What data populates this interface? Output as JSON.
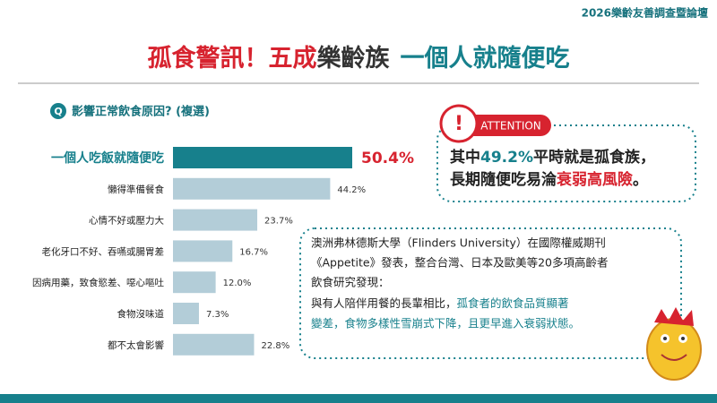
{
  "header": {
    "event": "2026樂齡友善調查暨論壇",
    "title_parts": [
      "孤食警訊！五成",
      "樂齡族",
      "一個人就隨便吃"
    ]
  },
  "q_icon": "Q",
  "chart_data": {
    "type": "bar",
    "orientation": "horizontal",
    "title": "影響正常飲食原因? (複選)",
    "categories": [
      "一個人吃飯就隨便吃",
      "懶得準備餐食",
      "心情不好或壓力大",
      "老化牙口不好、吞嚥或腸胃差",
      "因病用藥，致食慾差、噁心嘔吐",
      "食物沒味道",
      "都不太會影響"
    ],
    "values": [
      50.4,
      44.2,
      23.7,
      16.7,
      12.0,
      7.3,
      22.8
    ],
    "value_labels": [
      "50.4%",
      "44.2%",
      "23.7%",
      "16.7%",
      "12.0%",
      "7.3%",
      "22.8%"
    ],
    "colors": [
      "#17808c",
      "#b3cdd8",
      "#b3cdd8",
      "#b3cdd8",
      "#b3cdd8",
      "#b3cdd8",
      "#b3cdd8"
    ]
  },
  "attention": {
    "tag": "ATTENTION",
    "lines": [
      [
        "其中",
        "49.2%",
        "平時就是孤食族，"
      ],
      [
        "長期隨便吃易淪",
        "衰弱高風險",
        "。"
      ]
    ]
  },
  "note": {
    "lines": [
      [
        "澳洲弗林德斯大學（Flinders University）在國際權威期刊"
      ],
      [
        "《Appetite》發表，整合台灣、日本及歐美等20多項高齡者"
      ],
      [
        "飲食研究發現："
      ],
      [
        "與有人陪伴用餐的長輩相比，",
        "孤食者的飲食品質顯著"
      ],
      [
        "變差，食物多樣性雪崩式下降，且更早進入衰弱狀態。"
      ]
    ]
  }
}
